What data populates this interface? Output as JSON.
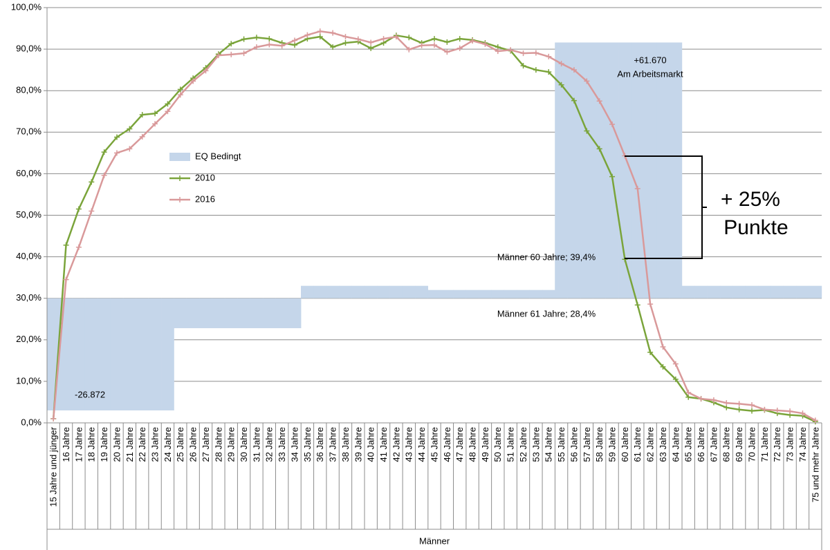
{
  "chart_data": {
    "type": "line",
    "categories": [
      "15 Jahre und jünger",
      "16 Jahre",
      "17 Jahre",
      "18 Jahre",
      "19 Jahre",
      "20 Jahre",
      "21 Jahre",
      "22 Jahre",
      "23 Jahre",
      "24 Jahre",
      "25 Jahre",
      "26 Jahre",
      "27 Jahre",
      "28 Jahre",
      "29 Jahre",
      "30 Jahre",
      "31 Jahre",
      "32 Jahre",
      "33 Jahre",
      "34 Jahre",
      "35 Jahre",
      "36 Jahre",
      "37 Jahre",
      "38 Jahre",
      "39 Jahre",
      "40 Jahre",
      "41 Jahre",
      "42 Jahre",
      "43 Jahre",
      "44 Jahre",
      "45 Jahre",
      "46 Jahre",
      "47 Jahre",
      "48 Jahre",
      "49 Jahre",
      "50 Jahre",
      "51 Jahre",
      "52 Jahre",
      "53 Jahre",
      "54 Jahre",
      "55 Jahre",
      "56 Jahre",
      "57 Jahre",
      "58 Jahre",
      "59 Jahre",
      "60 Jahre",
      "61 Jahre",
      "62 Jahre",
      "63 Jahre",
      "64 Jahre",
      "65 Jahre",
      "66 Jahre",
      "67 Jahre",
      "68 Jahre",
      "69 Jahre",
      "70 Jahre",
      "71 Jahre",
      "72 Jahre",
      "73 Jahre",
      "74 Jahre",
      "75 und mehr Jahre"
    ],
    "series": [
      {
        "name": "EQ Bedingt",
        "type": "bar",
        "color": "#c5d6ea",
        "bar_base": 30,
        "values": [
          3,
          3,
          3,
          3,
          3,
          3,
          3,
          3,
          3,
          3,
          22.8,
          22.8,
          22.8,
          22.8,
          22.8,
          22.8,
          22.8,
          22.8,
          22.8,
          22.8,
          33,
          33,
          33,
          33,
          33,
          33,
          33,
          33,
          33,
          33,
          32,
          32,
          32,
          32,
          32,
          32,
          32,
          32,
          32,
          32,
          91.6,
          91.6,
          91.6,
          91.6,
          91.6,
          91.6,
          91.6,
          91.6,
          91.6,
          91.6,
          33,
          33,
          33,
          33,
          33,
          33,
          33,
          33,
          33,
          33,
          33
        ]
      },
      {
        "name": "2010",
        "color": "#7aa43a",
        "values": [
          1.0,
          42.8,
          51.5,
          58.0,
          65.2,
          68.8,
          70.8,
          74.2,
          74.5,
          76.8,
          80.3,
          83.0,
          85.5,
          88.8,
          91.3,
          92.4,
          92.8,
          92.5,
          91.5,
          91.0,
          92.5,
          93.0,
          90.5,
          91.5,
          91.8,
          90.2,
          91.5,
          93.3,
          92.8,
          91.5,
          92.5,
          91.7,
          92.5,
          92.2,
          91.5,
          90.5,
          89.6,
          86.0,
          85.0,
          84.5,
          81.4,
          77.6,
          70.3,
          66.0,
          59.3,
          39.4,
          28.4,
          17.0,
          13.5,
          10.5,
          6.2,
          5.8,
          4.9,
          3.7,
          3.2,
          2.9,
          3.1,
          2.3,
          1.9,
          1.7,
          0.3
        ]
      },
      {
        "name": "2016",
        "color": "#d9999a",
        "values": [
          1.0,
          34.5,
          42.3,
          51.0,
          59.6,
          65.0,
          66.0,
          68.9,
          72.0,
          75.0,
          79.0,
          82.3,
          84.8,
          88.5,
          88.7,
          89.0,
          90.5,
          91.1,
          90.8,
          92.1,
          93.4,
          94.3,
          93.9,
          93.0,
          92.4,
          91.6,
          92.5,
          93.0,
          89.9,
          90.9,
          91.0,
          89.3,
          90.2,
          92.0,
          91.2,
          89.5,
          89.8,
          89.0,
          89.1,
          88.2,
          86.5,
          85.0,
          82.3,
          77.5,
          71.9,
          64.3,
          56.4,
          28.6,
          18.3,
          14.2,
          7.3,
          5.8,
          5.5,
          4.8,
          4.6,
          4.3,
          3.2,
          3.0,
          2.8,
          2.3,
          0.6
        ]
      }
    ],
    "ylim": [
      0,
      100
    ],
    "yticks": [
      {
        "value": 0,
        "label": "0,0%"
      },
      {
        "value": 10,
        "label": "10,0%"
      },
      {
        "value": 20,
        "label": "20,0%"
      },
      {
        "value": 30,
        "label": "30,0%"
      },
      {
        "value": 40,
        "label": "40,0%"
      },
      {
        "value": 50,
        "label": "50,0%"
      },
      {
        "value": 60,
        "label": "60,0%"
      },
      {
        "value": 70,
        "label": "70,0%"
      },
      {
        "value": 80,
        "label": "80,0%"
      },
      {
        "value": 90,
        "label": "90,0%"
      },
      {
        "value": 100,
        "label": "100,0%"
      }
    ],
    "grid": true,
    "xlabel": "Männer",
    "annotations": [
      "-26.872",
      "+61.670",
      "Am Arbeitsmarkt",
      "Männer 60 Jahre; 39,4%",
      "Männer 61 Jahre; 28,4%",
      "+ 25%",
      "Punkte"
    ]
  }
}
